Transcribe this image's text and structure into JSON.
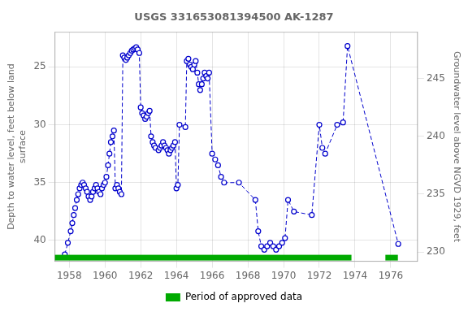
{
  "chart_data": {
    "type": "line",
    "title": "USGS 331653081394500 AK-1287",
    "y_label": "Depth to water level, feet below land\nsurface",
    "y2_label": "Groundwater level above NGVD 1929, feet",
    "xlim": [
      1957.2,
      1977.5
    ],
    "ylim": [
      41.8,
      22.0
    ],
    "y2lim": [
      229.2,
      249.0
    ],
    "xticks": [
      1958,
      1960,
      1962,
      1964,
      1966,
      1968,
      1970,
      1972,
      1974,
      1976
    ],
    "yticks": [
      25,
      30,
      35,
      40
    ],
    "y2ticks": [
      230,
      235,
      240,
      245
    ],
    "grid": true,
    "legend": "bottom",
    "color": "#0000cc",
    "line_style": "dashed",
    "marker": "circle",
    "x": [
      1957.75,
      1957.92,
      1958.08,
      1958.17,
      1958.25,
      1958.33,
      1958.42,
      1958.5,
      1958.58,
      1958.67,
      1958.75,
      1958.83,
      1958.92,
      1959.0,
      1959.08,
      1959.17,
      1959.25,
      1959.33,
      1959.42,
      1959.5,
      1959.58,
      1959.67,
      1959.75,
      1959.83,
      1959.92,
      1960.0,
      1960.08,
      1960.17,
      1960.25,
      1960.33,
      1960.42,
      1960.5,
      1960.58,
      1960.67,
      1960.75,
      1960.83,
      1960.92,
      1961.0,
      1961.08,
      1961.17,
      1961.25,
      1961.33,
      1961.42,
      1961.5,
      1961.58,
      1961.67,
      1961.75,
      1961.83,
      1961.92,
      1962.0,
      1962.08,
      1962.17,
      1962.25,
      1962.33,
      1962.42,
      1962.5,
      1962.58,
      1962.67,
      1962.75,
      1962.83,
      1963.0,
      1963.08,
      1963.17,
      1963.25,
      1963.33,
      1963.42,
      1963.5,
      1963.58,
      1963.67,
      1963.75,
      1963.83,
      1963.92,
      1964.0,
      1964.08,
      1964.17,
      1964.5,
      1964.58,
      1964.67,
      1964.75,
      1964.83,
      1964.92,
      1965.0,
      1965.08,
      1965.17,
      1965.25,
      1965.33,
      1965.42,
      1965.5,
      1965.58,
      1965.67,
      1965.75,
      1965.83,
      1966.0,
      1966.17,
      1966.33,
      1966.5,
      1966.67,
      1967.5,
      1968.42,
      1968.58,
      1968.75,
      1968.92,
      1969.08,
      1969.25,
      1969.42,
      1969.58,
      1969.75,
      1969.92,
      1970.08,
      1970.25,
      1970.58,
      1971.58,
      1972.0,
      1972.17,
      1972.33,
      1973.0,
      1973.33,
      1973.58,
      1976.42
    ],
    "values": [
      41.2,
      40.2,
      39.2,
      38.5,
      37.8,
      37.2,
      36.5,
      36.0,
      35.5,
      35.2,
      35.0,
      35.2,
      35.5,
      35.8,
      36.2,
      36.5,
      36.2,
      35.8,
      35.5,
      35.2,
      35.5,
      35.8,
      36.0,
      35.5,
      35.2,
      35.0,
      34.5,
      33.5,
      32.5,
      31.5,
      31.0,
      30.5,
      35.5,
      35.2,
      35.5,
      35.8,
      36.0,
      24.0,
      24.2,
      24.4,
      24.2,
      24.0,
      23.8,
      23.6,
      23.5,
      23.4,
      23.3,
      23.5,
      23.8,
      28.5,
      29.0,
      29.2,
      29.5,
      29.3,
      29.0,
      28.8,
      31.0,
      31.5,
      31.8,
      32.0,
      32.2,
      32.0,
      31.8,
      31.5,
      31.8,
      32.0,
      32.2,
      32.5,
      32.2,
      32.0,
      31.8,
      31.5,
      35.5,
      35.2,
      30.0,
      30.2,
      24.5,
      24.3,
      24.8,
      25.0,
      25.2,
      24.8,
      24.5,
      25.5,
      26.5,
      27.0,
      26.5,
      26.0,
      25.5,
      25.8,
      26.0,
      25.5,
      32.5,
      33.0,
      33.5,
      34.5,
      35.0,
      35.0,
      36.5,
      39.2,
      40.5,
      40.8,
      40.5,
      40.2,
      40.5,
      40.8,
      40.5,
      40.2,
      39.8,
      36.5,
      37.5,
      37.8,
      30.0,
      32.0,
      32.5,
      30.0,
      29.8,
      23.2,
      40.3
    ],
    "approved_periods": [
      [
        1957.2,
        1973.8
      ],
      [
        1975.7,
        1976.4
      ]
    ],
    "approved_label": "Period of approved data",
    "approved_color": "#00aa00"
  }
}
